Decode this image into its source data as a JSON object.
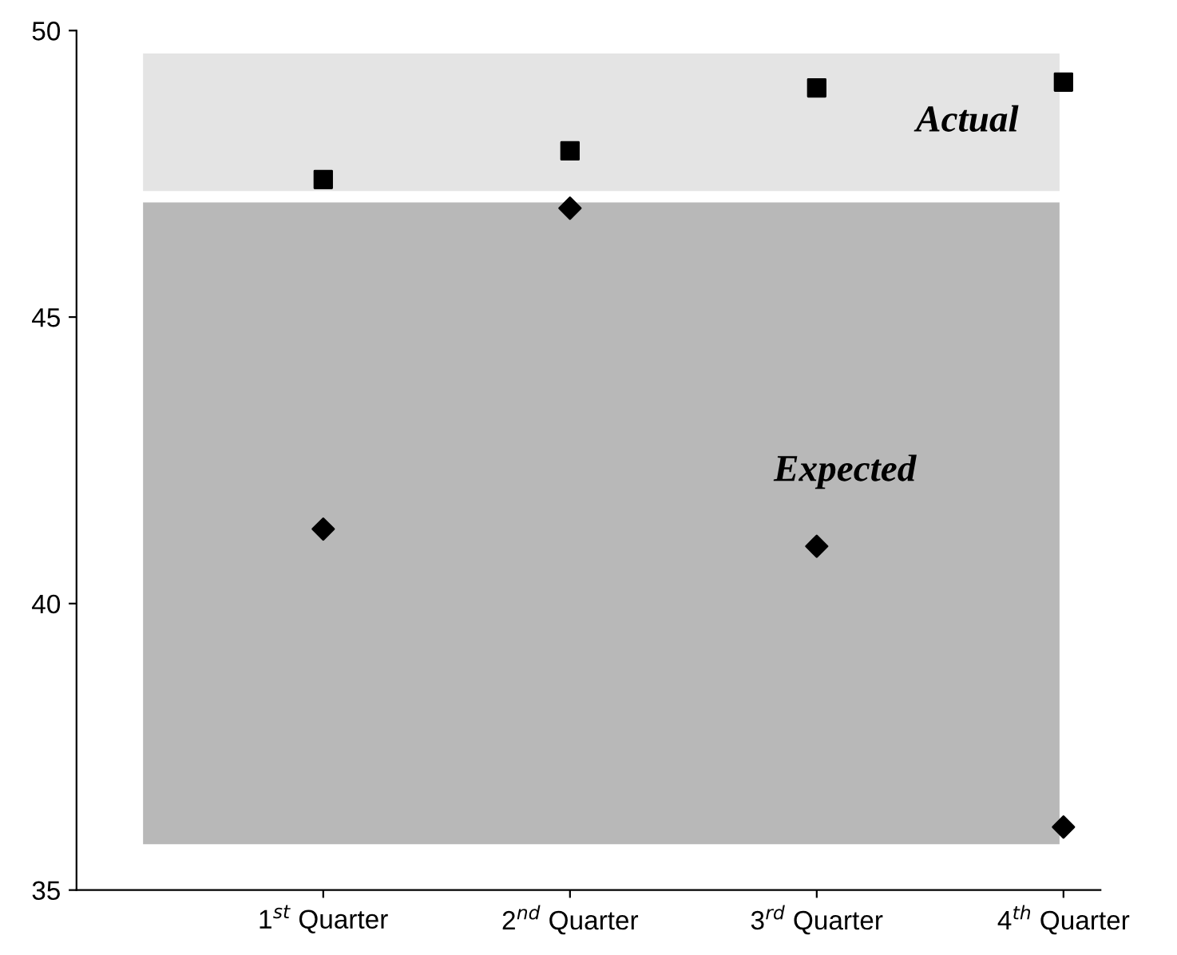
{
  "chart_data": {
    "type": "scatter",
    "categories": [
      "1$^{st}$ Quarter",
      "2$^{nd}$ Quarter",
      "3$^{rd}$ Quarter",
      "4$^{th}$ Quarter"
    ],
    "series": [
      {
        "color": "#000000",
        "marker": "square",
        "values": [
          47.4,
          47.9,
          49.0,
          49.1
        ]
      },
      {
        "color": "#000000",
        "marker": "diamond",
        "values": [
          41.3,
          46.9,
          41.0,
          36.1
        ]
      }
    ],
    "ylim": [
      35,
      50
    ],
    "yticks": [
      35,
      40,
      45,
      50
    ],
    "bands": [
      {
        "axis": "y",
        "from": 47.2,
        "to": 49.6,
        "label": "Actual",
        "color": "#e4e4e4"
      },
      {
        "axis": "y",
        "from": 35.8,
        "to": 47.0,
        "label": "Expected",
        "color": "#b8b8b8"
      }
    ],
    "grid": false,
    "legend": false
  }
}
